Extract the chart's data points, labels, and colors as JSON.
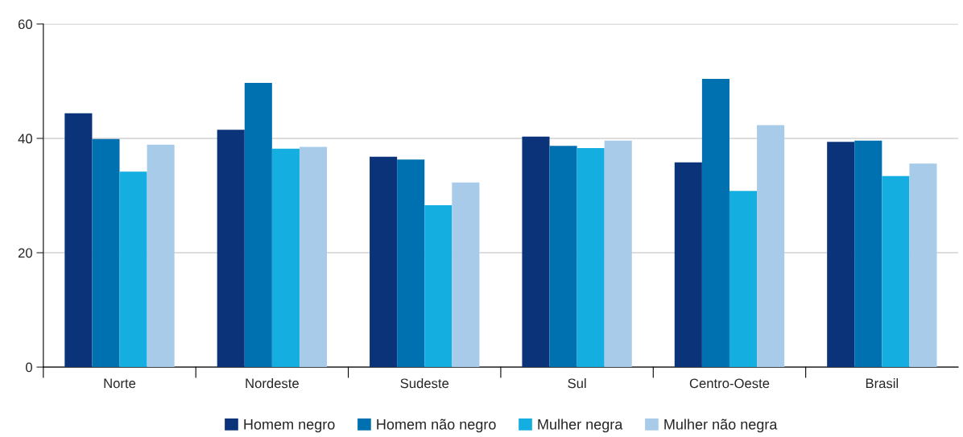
{
  "chart_data": {
    "type": "bar",
    "categories": [
      "Norte",
      "Nordeste",
      "Sudeste",
      "Sul",
      "Centro-Oeste",
      "Brasil"
    ],
    "series": [
      {
        "name": "Homem negro",
        "color": "#0a3379",
        "values": [
          44.4,
          41.5,
          36.8,
          40.3,
          35.8,
          39.4
        ]
      },
      {
        "name": "Homem não negro",
        "color": "#0071b0",
        "values": [
          39.9,
          49.7,
          36.3,
          38.7,
          50.4,
          39.6
        ]
      },
      {
        "name": "Mulher negra",
        "color": "#14aee0",
        "values": [
          34.2,
          38.2,
          28.3,
          38.3,
          30.8,
          33.4
        ]
      },
      {
        "name": "Mulher não negra",
        "color": "#a9cbea",
        "values": [
          38.9,
          38.5,
          32.3,
          39.6,
          42.3,
          35.6
        ]
      }
    ],
    "ylim": [
      0,
      60
    ],
    "yticks": [
      0,
      20,
      40,
      60
    ],
    "grid": "y",
    "legend": "bottom"
  }
}
